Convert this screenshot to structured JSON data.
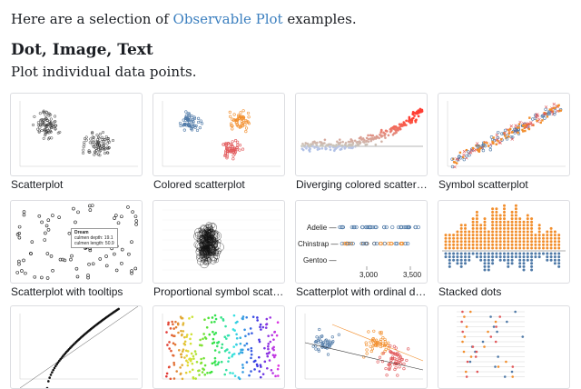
{
  "intro": {
    "prefix": "Here are a selection of ",
    "link": "Observable Plot",
    "suffix": " examples."
  },
  "section": {
    "title": "Dot, Image, Text",
    "subtitle": "Plot individual data points."
  },
  "cards": [
    {
      "caption": "Scatterplot"
    },
    {
      "caption": "Colored scatterplot"
    },
    {
      "caption": "Diverging colored scatterplot"
    },
    {
      "caption": "Symbol scatterplot"
    },
    {
      "caption": "Scatterplot with tooltips",
      "tooltip": {
        "title": "Dream",
        "line1": "culmen depth: 19.1",
        "line2": "culmen length: 50.9"
      }
    },
    {
      "caption": "Proportional symbol scatter..."
    },
    {
      "caption": "Scatterplot with ordinal dim...",
      "ordinal": {
        "rows": [
          "Adelie —",
          "Chinstrap —",
          "Gentoo —"
        ],
        "ticks": [
          "3,000",
          "3,500"
        ]
      }
    },
    {
      "caption": "Stacked dots"
    },
    {
      "caption": ""
    },
    {
      "caption": ""
    },
    {
      "caption": ""
    },
    {
      "caption": ""
    }
  ],
  "colors": {
    "link": "#3b7fbf",
    "thumb_border": "#dcdde1",
    "blue": "#4e79a7",
    "orange": "#f28e2c",
    "red": "#e15759",
    "gray": "#555555"
  }
}
